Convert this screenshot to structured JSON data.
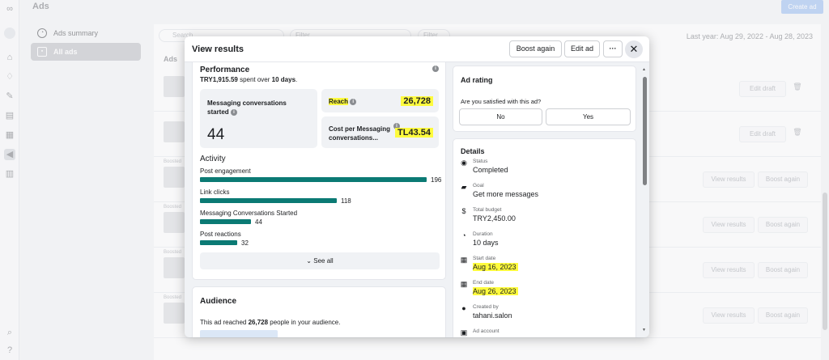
{
  "app": {
    "page_title": "Ads",
    "create_ad_label": "Create ad",
    "sidenav": [
      {
        "label": "Ads summary"
      },
      {
        "label": "All ads"
      }
    ],
    "search_placeholder": "Search",
    "filter1": "Filter",
    "filter2": "Filter",
    "date_range": "Last year: Aug 29, 2022 - Aug 28, 2023",
    "ads_column": "Ads",
    "boosted_label": "Boosted",
    "edit_draft_label": "Edit draft",
    "view_results_label": "View results",
    "boost_again_label": "Boost again"
  },
  "modal": {
    "title": "View results",
    "boost_again_label": "Boost again",
    "edit_ad_label": "Edit ad",
    "more_label": "···",
    "close_label": "✕",
    "performance": {
      "title": "Performance",
      "spent_amount": "TRY1,915.59",
      "spent_mid": " spent over ",
      "spent_days": "10 days",
      "spent_end": ".",
      "messaging_label": "Messaging conversations started",
      "messaging_value": "44",
      "reach_label": "Reach",
      "reach_value": "26,728",
      "cpm_label": "Cost per Messaging conversations...",
      "cpm_value": "TL43.54"
    },
    "activity": {
      "title": "Activity",
      "rows": [
        {
          "label": "Post engagement",
          "value": 196
        },
        {
          "label": "Link clicks",
          "value": 118
        },
        {
          "label": "Messaging Conversations Started",
          "value": 44
        },
        {
          "label": "Post reactions",
          "value": 32
        }
      ],
      "see_all_label": "See all"
    },
    "audience": {
      "title": "Audience",
      "text_pre": "This ad reached ",
      "text_num": "26,728",
      "text_post": " people in your audience."
    },
    "rating": {
      "title": "Ad rating",
      "question": "Are you satisfied with this ad?",
      "no_label": "No",
      "yes_label": "Yes"
    },
    "details": {
      "title": "Details",
      "items": [
        {
          "icon": "status-icon",
          "label": "Status",
          "value": "Completed"
        },
        {
          "icon": "goal-icon",
          "label": "Goal",
          "value": "Get more messages"
        },
        {
          "icon": "budget-icon",
          "label": "Total budget",
          "value": "TRY2,450.00"
        },
        {
          "icon": "duration-icon",
          "label": "Duration",
          "value": "10 days"
        },
        {
          "icon": "calendar-icon",
          "label": "Start date",
          "value": "Aug 16, 2023"
        },
        {
          "icon": "calendar-icon",
          "label": "End date",
          "value": "Aug 26, 2023"
        },
        {
          "icon": "person-icon",
          "label": "Created by",
          "value": "tahani.salon"
        },
        {
          "icon": "account-icon",
          "label": "Ad account",
          "value": ""
        }
      ]
    }
  },
  "colors": {
    "bar": "#0b7a74",
    "highlight": "#fefb3d",
    "primary_disabled": "#a8c6f3"
  }
}
